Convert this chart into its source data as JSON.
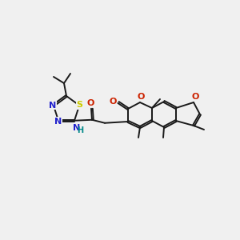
{
  "bg_color": "#f0f0f0",
  "bond_color": "#1a1a1a",
  "fig_size": [
    3.0,
    3.0
  ],
  "dpi": 100,
  "bond_lw": 1.4,
  "double_sep": 2.2,
  "atom_colors": {
    "S": "#cccc00",
    "N": "#2222cc",
    "O": "#cc2200",
    "H": "#008888"
  }
}
